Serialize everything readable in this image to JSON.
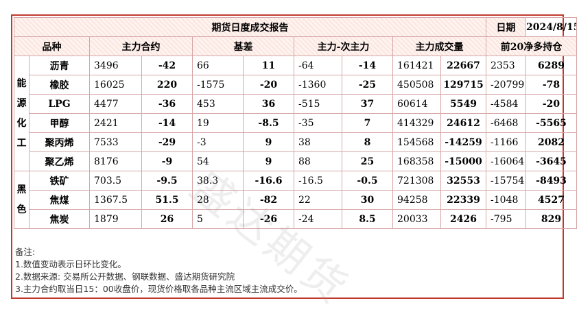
{
  "title": "期货日度成交报告",
  "date_label": "日期",
  "date_value": "2024/8/15",
  "headers": {
    "variety": "品种",
    "main_contract": "主力合约",
    "basis": "基差",
    "spread": "主力-次主力",
    "volume": "主力成交量",
    "top20": "前20净多持仓"
  },
  "groups": [
    {
      "category_chars": [
        "能",
        "源",
        "化",
        "工"
      ],
      "rows": [
        {
          "name": "沥青",
          "main": "3496",
          "main_chg": "-42",
          "basis": "66",
          "basis_chg": "11",
          "spread": "-64",
          "spread_chg": "-14",
          "volume": "161421",
          "volume_chg": "22667",
          "top20": "2353",
          "top20_chg": "6289"
        },
        {
          "name": "橡胶",
          "main": "16025",
          "main_chg": "220",
          "basis": "-1575",
          "basis_chg": "-20",
          "spread": "-1360",
          "spread_chg": "-25",
          "volume": "450508",
          "volume_chg": "129715",
          "top20": "-20799",
          "top20_chg": "-78"
        },
        {
          "name": "LPG",
          "main": "4477",
          "main_chg": "-36",
          "basis": "453",
          "basis_chg": "36",
          "spread": "-515",
          "spread_chg": "37",
          "volume": "60614",
          "volume_chg": "5549",
          "top20": "-4584",
          "top20_chg": "-20"
        },
        {
          "name": "甲醇",
          "main": "2421",
          "main_chg": "-14",
          "basis": "19",
          "basis_chg": "-8.5",
          "spread": "-35",
          "spread_chg": "7",
          "volume": "414329",
          "volume_chg": "24612",
          "top20": "-6468",
          "top20_chg": "-5565"
        },
        {
          "name": "聚丙烯",
          "main": "7533",
          "main_chg": "-29",
          "basis": "-3",
          "basis_chg": "9",
          "spread": "38",
          "spread_chg": "8",
          "volume": "154568",
          "volume_chg": "-14259",
          "top20": "-1166",
          "top20_chg": "2082"
        },
        {
          "name": "聚乙烯",
          "main": "8176",
          "main_chg": "-9",
          "basis": "54",
          "basis_chg": "9",
          "spread": "88",
          "spread_chg": "25",
          "volume": "168358",
          "volume_chg": "-15000",
          "top20": "-16064",
          "top20_chg": "-3645"
        }
      ]
    },
    {
      "category_chars": [
        "黑",
        "色"
      ],
      "rows": [
        {
          "name": "铁矿",
          "main": "703.5",
          "main_chg": "-9.5",
          "basis": "38.3",
          "basis_chg": "-16.6",
          "spread": "-16.5",
          "spread_chg": "-0.5",
          "volume": "721308",
          "volume_chg": "32553",
          "top20": "-15754",
          "top20_chg": "-8493"
        },
        {
          "name": "焦煤",
          "main": "1367.5",
          "main_chg": "51.5",
          "basis": "28",
          "basis_chg": "-82",
          "spread": "22",
          "spread_chg": "30",
          "volume": "94258",
          "volume_chg": "22339",
          "top20": "-1048",
          "top20_chg": "4527"
        },
        {
          "name": "焦炭",
          "main": "1879",
          "main_chg": "26",
          "basis": "5",
          "basis_chg": "-26",
          "spread": "-24",
          "spread_chg": "8.5",
          "volume": "20033",
          "volume_chg": "2426",
          "top20": "-795",
          "top20_chg": "829"
        }
      ]
    }
  ],
  "notes": {
    "heading": "备注:",
    "lines": [
      "1.数值变动表示日环比变化。",
      "2.数据来源: 交易所公开数据、钢联数据、盛达期货研究院",
      "3.主力合约取当日15：00收盘价，现货价格取各品种主流区域主流成交价。"
    ]
  },
  "watermark": "盛达期货",
  "colors": {
    "frame": "#c0392b",
    "positive": "#e02020",
    "negative": "#6cbf44"
  }
}
